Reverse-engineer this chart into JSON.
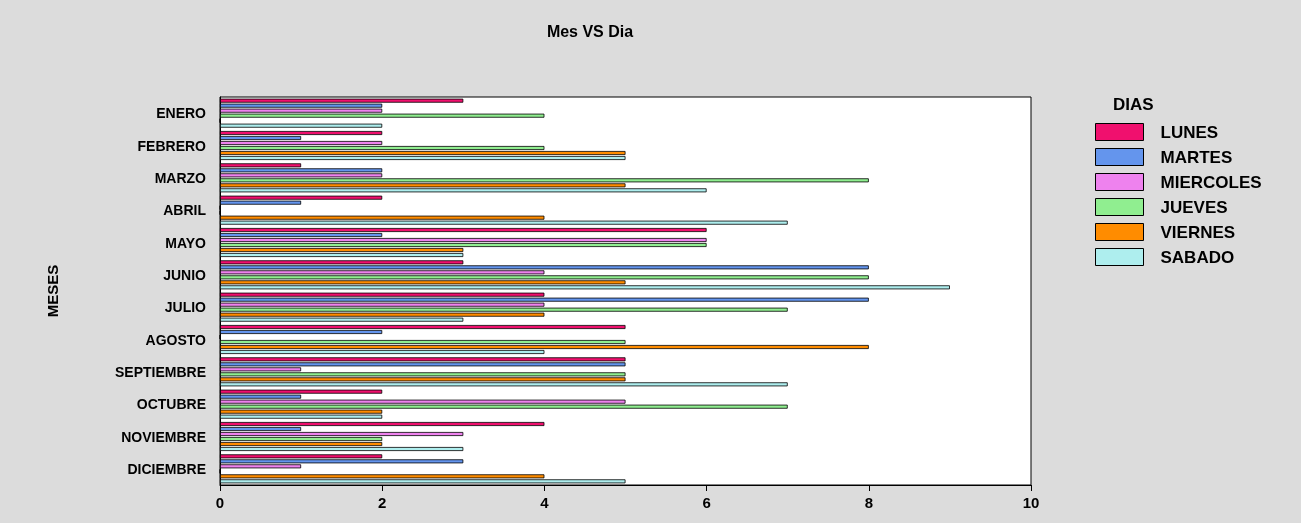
{
  "chart_data": {
    "type": "bar",
    "orientation": "horizontal",
    "title": "Mes VS Dia",
    "ylabel": "MESES",
    "legend_title": "DIAS",
    "legend": "right",
    "categories": [
      "ENERO",
      "FEBRERO",
      "MARZO",
      "ABRIL",
      "MAYO",
      "JUNIO",
      "JULIO",
      "AGOSTO",
      "SEPTIEMBRE",
      "OCTUBRE",
      "NOVIEMBRE",
      "DICIEMBRE"
    ],
    "series": [
      {
        "name": "LUNES",
        "color": "#f0106e",
        "values": [
          3,
          2,
          1,
          2,
          6,
          3,
          4,
          5,
          5,
          2,
          4,
          2
        ]
      },
      {
        "name": "MARTES",
        "color": "#6495ed",
        "values": [
          2,
          1,
          2,
          1,
          2,
          8,
          8,
          2,
          5,
          1,
          1,
          3
        ]
      },
      {
        "name": "MIERCOLES",
        "color": "#ee82ee",
        "values": [
          2,
          2,
          2,
          0,
          6,
          4,
          4,
          0,
          1,
          5,
          3,
          1
        ]
      },
      {
        "name": "JUEVES",
        "color": "#90ee90",
        "values": [
          4,
          4,
          8,
          0,
          6,
          8,
          7,
          5,
          5,
          7,
          2,
          0
        ]
      },
      {
        "name": "VIERNES",
        "color": "#ff8c00",
        "values": [
          0,
          5,
          5,
          4,
          3,
          5,
          4,
          8,
          5,
          2,
          2,
          4
        ]
      },
      {
        "name": "SABADO",
        "color": "#aeeeee",
        "values": [
          2,
          5,
          6,
          7,
          3,
          9,
          3,
          4,
          7,
          2,
          3,
          5
        ]
      }
    ],
    "xlim": [
      0,
      10
    ],
    "xticks": [
      0,
      2,
      4,
      6,
      8,
      10
    ],
    "grid": false
  }
}
